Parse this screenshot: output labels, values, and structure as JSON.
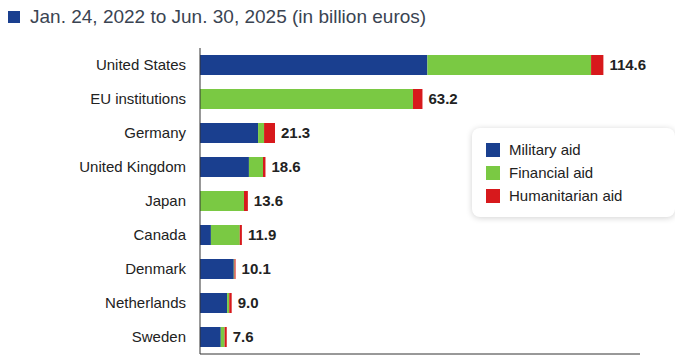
{
  "chart_data": {
    "type": "bar",
    "orientation": "horizontal",
    "stacked": true,
    "subtitle": "Jan. 24, 2022 to Jun. 30, 2025 (in billion euros)",
    "categories": [
      "United States",
      "EU institutions",
      "Germany",
      "United Kingdom",
      "Japan",
      "Canada",
      "Denmark",
      "Netherlands",
      "Sweden"
    ],
    "series": [
      {
        "name": "Military aid",
        "color": "#1a3f8f",
        "values": [
          64.6,
          0,
          16.5,
          13.9,
          0,
          3.1,
          9.6,
          7.7,
          5.9
        ]
      },
      {
        "name": "Financial aid",
        "color": "#7ac943",
        "values": [
          46.5,
          60.5,
          1.7,
          4.0,
          12.5,
          8.2,
          0.2,
          0.6,
          1.1
        ]
      },
      {
        "name": "Humanitarian aid",
        "color": "#d7191c",
        "values": [
          3.5,
          2.7,
          3.1,
          0.7,
          1.1,
          0.6,
          0.3,
          0.7,
          0.6
        ]
      }
    ],
    "totals": [
      114.6,
      63.2,
      21.3,
      18.6,
      13.6,
      11.9,
      10.1,
      9.0,
      7.6
    ],
    "total_labels": [
      "114.6",
      "63.2",
      "21.3",
      "18.6",
      "13.6",
      "11.9",
      "10.1",
      "9.0",
      "7.6"
    ],
    "xlim": [
      0,
      125
    ],
    "xticks": [],
    "tick_labels": "y",
    "legend": "right",
    "grid": false
  }
}
